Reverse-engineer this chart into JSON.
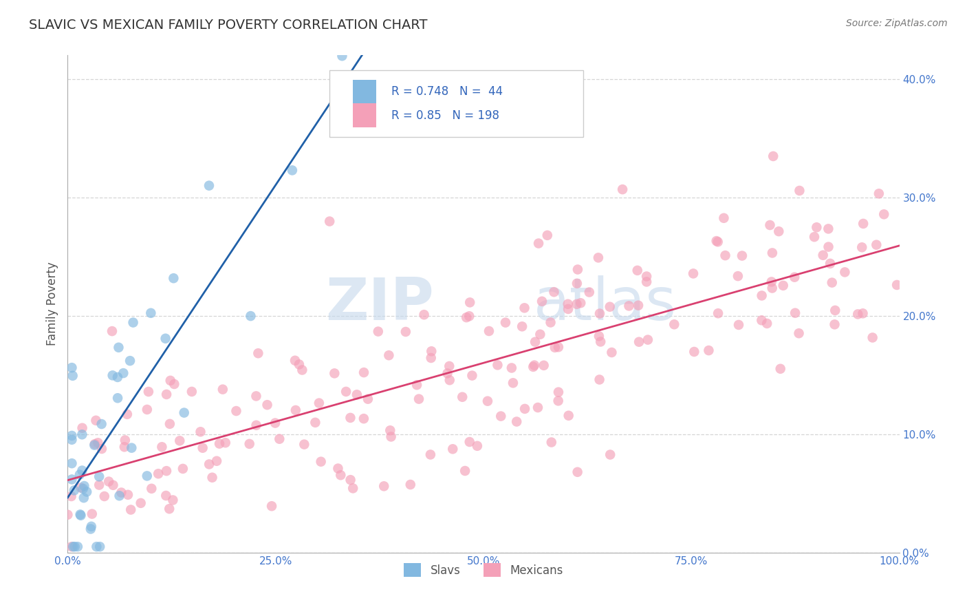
{
  "title": "SLAVIC VS MEXICAN FAMILY POVERTY CORRELATION CHART",
  "source": "Source: ZipAtlas.com",
  "ylabel": "Family Poverty",
  "watermark_zip": "ZIP",
  "watermark_atlas": "atlas",
  "xmin": 0.0,
  "xmax": 1.0,
  "ymin": 0.0,
  "ymax": 0.42,
  "yticks": [
    0.0,
    0.1,
    0.2,
    0.3,
    0.4
  ],
  "xticks": [
    0.0,
    0.25,
    0.5,
    0.75,
    1.0
  ],
  "slavic_color": "#82b8e0",
  "mexican_color": "#f4a0b8",
  "slavic_line_color": "#2060a8",
  "mexican_line_color": "#d94070",
  "slavic_R": 0.748,
  "slavic_N": 44,
  "mexican_R": 0.85,
  "mexican_N": 198,
  "title_color": "#333333",
  "source_color": "#777777",
  "axis_label_color": "#555555",
  "tick_color": "#4477cc",
  "legend_text_color": "#3366bb",
  "grid_color": "#cccccc",
  "bg_color": "#ffffff"
}
